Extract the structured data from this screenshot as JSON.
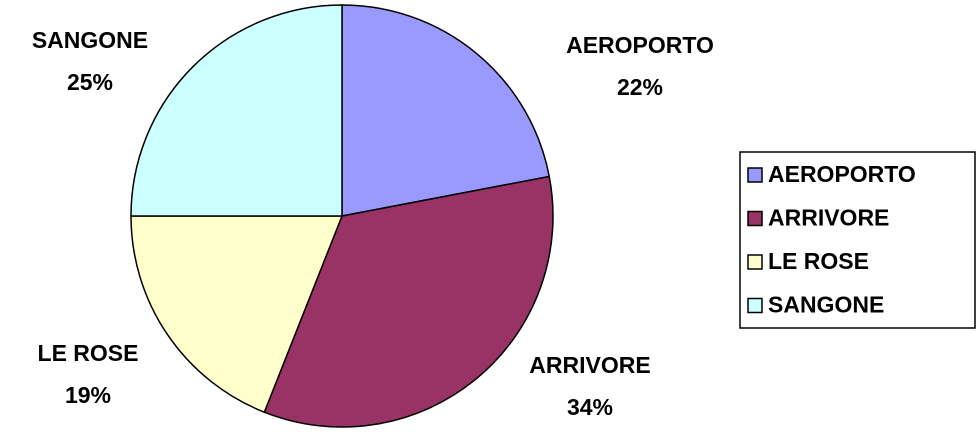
{
  "chart_data": {
    "type": "pie",
    "categories": [
      "AEROPORTO",
      "ARRIVORE",
      "LE ROSE",
      "SANGONE"
    ],
    "values": [
      22,
      34,
      19,
      25
    ],
    "value_labels": [
      "22%",
      "34%",
      "19%",
      "25%"
    ],
    "colors": [
      "#9999ff",
      "#993366",
      "#ffffcc",
      "#ccffff"
    ],
    "legend": "right"
  }
}
